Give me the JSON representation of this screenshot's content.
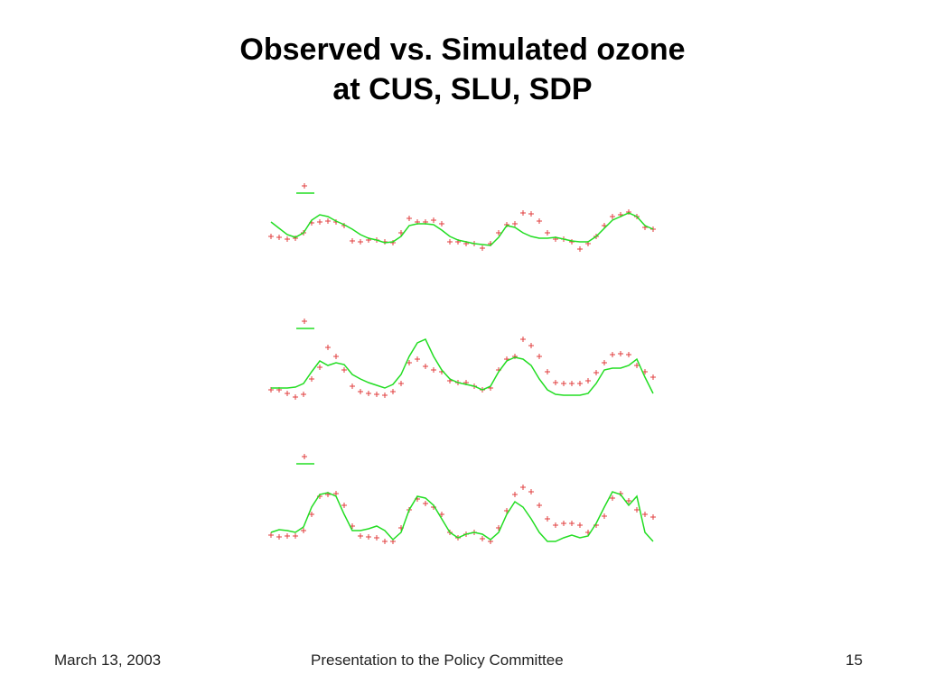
{
  "title": [
    "Observed vs. Simulated ozone",
    "at CUS, SLU, SDP"
  ],
  "footer": {
    "date": "March 13, 2003",
    "text": "Presentation to the Policy Committee",
    "page": "15"
  },
  "chart_data": [
    {
      "type": "line",
      "ylim": [
        0,
        100
      ],
      "series": [
        {
          "color": "#e03c3c",
          "marker": "+",
          "values": [
            38,
            37,
            35,
            36,
            42,
            53,
            54,
            55,
            54,
            50,
            33,
            32,
            34,
            34,
            32,
            31,
            42,
            58,
            54,
            54,
            56,
            52,
            32,
            32,
            30,
            30,
            25,
            30,
            42,
            51,
            52,
            64,
            63,
            55,
            42,
            35,
            35,
            32,
            24,
            30,
            38,
            50,
            60,
            62,
            65,
            60,
            48,
            46
          ]
        },
        {
          "color": "#22dd22",
          "values": [
            54,
            47,
            40,
            37,
            42,
            56,
            62,
            60,
            55,
            51,
            46,
            40,
            36,
            34,
            31,
            32,
            38,
            50,
            52,
            52,
            51,
            45,
            38,
            34,
            32,
            30,
            29,
            28,
            37,
            50,
            48,
            42,
            38,
            36,
            36,
            37,
            35,
            33,
            32,
            32,
            38,
            47,
            56,
            60,
            64,
            60,
            50,
            46
          ]
        }
      ]
    },
    {
      "type": "line",
      "ylim": [
        0,
        100
      ],
      "series": [
        {
          "color": "#e03c3c",
          "marker": "+",
          "values": [
            18,
            18,
            14,
            10,
            13,
            30,
            43,
            65,
            55,
            40,
            22,
            16,
            14,
            13,
            12,
            16,
            25,
            48,
            52,
            44,
            40,
            38,
            28,
            26,
            26,
            22,
            18,
            20,
            40,
            52,
            55,
            74,
            67,
            55,
            38,
            26,
            25,
            25,
            25,
            28,
            37,
            48,
            57,
            58,
            57,
            45,
            38,
            32
          ]
        },
        {
          "color": "#22dd22",
          "values": [
            20,
            20,
            20,
            21,
            25,
            38,
            50,
            45,
            48,
            46,
            35,
            30,
            26,
            23,
            20,
            24,
            35,
            55,
            70,
            74,
            55,
            40,
            30,
            26,
            24,
            22,
            18,
            22,
            38,
            50,
            54,
            52,
            45,
            30,
            18,
            13,
            12,
            12,
            12,
            14,
            25,
            40,
            42,
            42,
            45,
            52,
            32,
            14
          ]
        }
      ]
    },
    {
      "type": "line",
      "ylim": [
        0,
        100
      ],
      "series": [
        {
          "color": "#e03c3c",
          "marker": "+",
          "values": [
            7,
            5,
            6,
            6,
            12,
            30,
            50,
            52,
            53,
            40,
            17,
            6,
            5,
            4,
            0,
            0,
            15,
            35,
            47,
            42,
            38,
            30,
            10,
            4,
            8,
            10,
            3,
            0,
            15,
            34,
            52,
            60,
            55,
            40,
            25,
            18,
            20,
            20,
            18,
            10,
            18,
            28,
            48,
            53,
            45,
            35,
            30,
            27
          ]
        },
        {
          "color": "#22dd22",
          "values": [
            10,
            13,
            12,
            10,
            16,
            38,
            52,
            54,
            50,
            30,
            12,
            12,
            14,
            17,
            12,
            2,
            10,
            35,
            50,
            48,
            40,
            25,
            10,
            4,
            8,
            10,
            8,
            2,
            10,
            30,
            44,
            38,
            25,
            10,
            0,
            0,
            4,
            7,
            4,
            6,
            20,
            38,
            55,
            52,
            40,
            50,
            10,
            0
          ]
        }
      ]
    }
  ]
}
